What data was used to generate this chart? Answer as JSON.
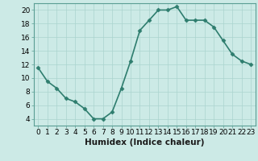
{
  "x": [
    0,
    1,
    2,
    3,
    4,
    5,
    6,
    7,
    8,
    9,
    10,
    11,
    12,
    13,
    14,
    15,
    16,
    17,
    18,
    19,
    20,
    21,
    22,
    23
  ],
  "y": [
    11.5,
    9.5,
    8.5,
    7.0,
    6.5,
    5.5,
    4.0,
    4.0,
    5.0,
    8.5,
    12.5,
    17.0,
    18.5,
    20.0,
    20.0,
    20.5,
    18.5,
    18.5,
    18.5,
    17.5,
    15.5,
    13.5,
    12.5,
    12.0
  ],
  "xlabel": "Humidex (Indice chaleur)",
  "xlim": [
    -0.5,
    23.5
  ],
  "ylim": [
    3,
    21
  ],
  "yticks": [
    4,
    6,
    8,
    10,
    12,
    14,
    16,
    18,
    20
  ],
  "xticks": [
    0,
    1,
    2,
    3,
    4,
    5,
    6,
    7,
    8,
    9,
    10,
    11,
    12,
    13,
    14,
    15,
    16,
    17,
    18,
    19,
    20,
    21,
    22,
    23
  ],
  "line_color": "#2e7d6e",
  "marker_color": "#2e7d6e",
  "bg_color": "#cceae6",
  "grid_color": "#aad4ce",
  "xlabel_fontsize": 7.5,
  "tick_fontsize": 6.5,
  "line_width": 1.2,
  "marker_size": 2.5,
  "marker": "D"
}
